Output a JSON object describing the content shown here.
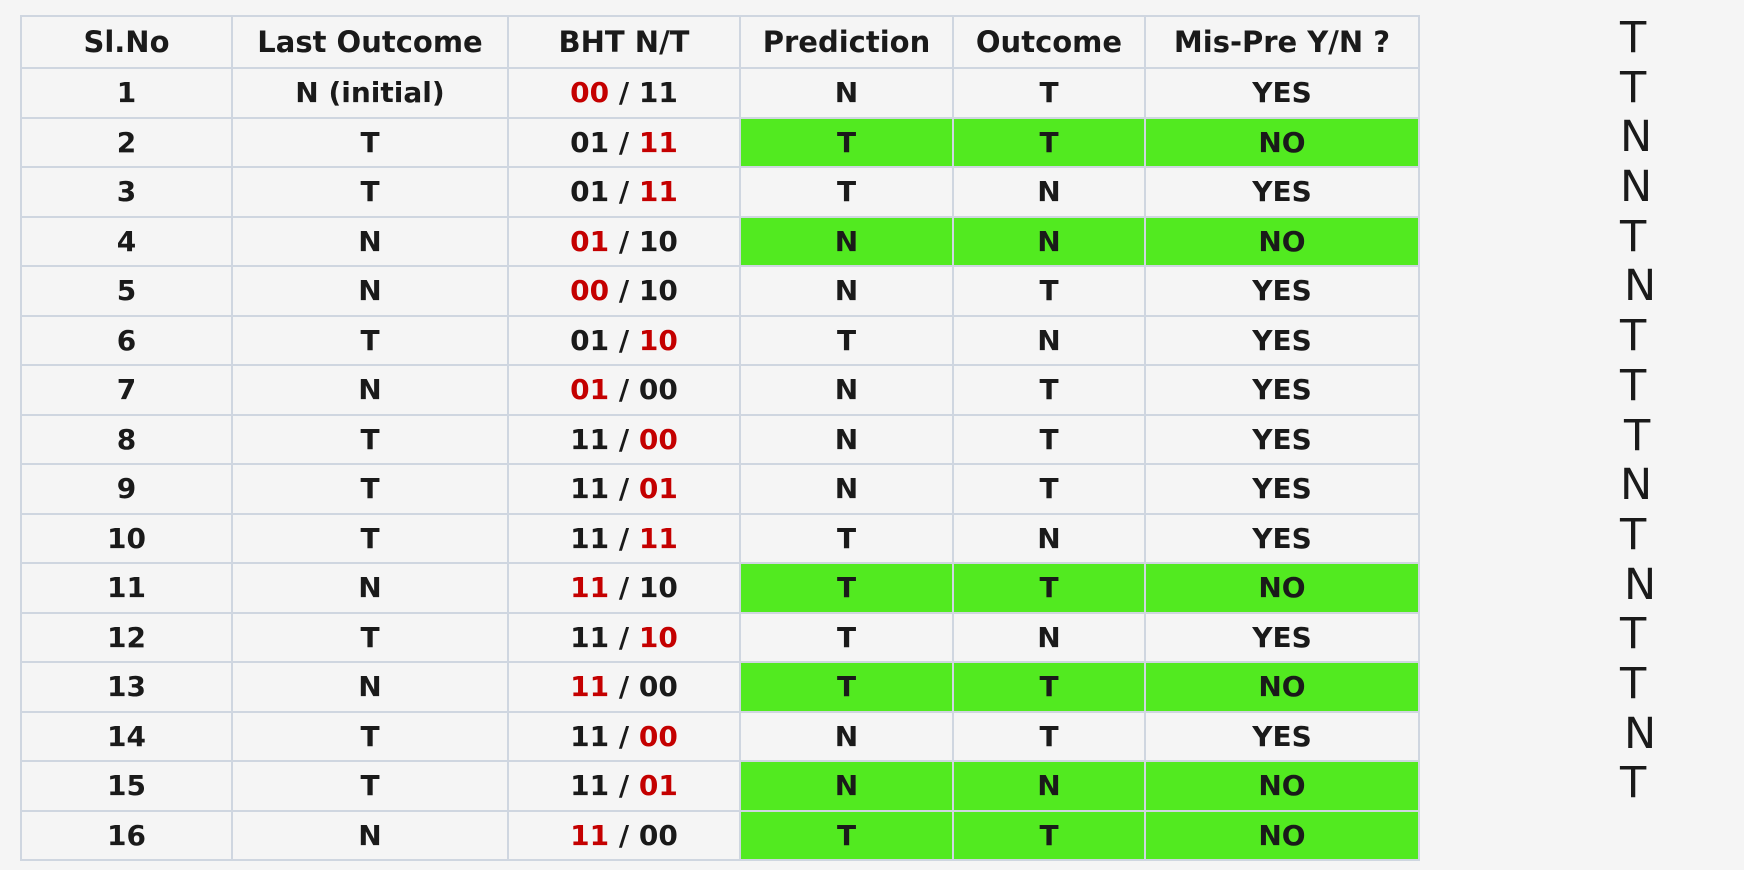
{
  "table": {
    "headers": [
      "Sl.No",
      "Last Outcome",
      "BHT N/T",
      "Prediction",
      "Outcome",
      "Mis-Pre Y/N ?"
    ],
    "rows": [
      {
        "slno": "1",
        "last": "N (initial)",
        "bht_n": "00",
        "bht_t": "11",
        "red": "n",
        "pred": "N",
        "outcome": "T",
        "mis": "YES",
        "highlight": false
      },
      {
        "slno": "2",
        "last": "T",
        "bht_n": "01",
        "bht_t": "11",
        "red": "t",
        "pred": "T",
        "outcome": "T",
        "mis": "NO",
        "highlight": true
      },
      {
        "slno": "3",
        "last": "T",
        "bht_n": "01",
        "bht_t": "11",
        "red": "t",
        "pred": "T",
        "outcome": "N",
        "mis": "YES",
        "highlight": false
      },
      {
        "slno": "4",
        "last": "N",
        "bht_n": "01",
        "bht_t": "10",
        "red": "n",
        "pred": "N",
        "outcome": "N",
        "mis": "NO",
        "highlight": true
      },
      {
        "slno": "5",
        "last": "N",
        "bht_n": "00",
        "bht_t": "10",
        "red": "n",
        "pred": "N",
        "outcome": "T",
        "mis": "YES",
        "highlight": false
      },
      {
        "slno": "6",
        "last": "T",
        "bht_n": "01",
        "bht_t": "10",
        "red": "t",
        "pred": "T",
        "outcome": "N",
        "mis": "YES",
        "highlight": false
      },
      {
        "slno": "7",
        "last": "N",
        "bht_n": "01",
        "bht_t": "00",
        "red": "n",
        "pred": "N",
        "outcome": "T",
        "mis": "YES",
        "highlight": false
      },
      {
        "slno": "8",
        "last": "T",
        "bht_n": "11",
        "bht_t": "00",
        "red": "t",
        "pred": "N",
        "outcome": "T",
        "mis": "YES",
        "highlight": false
      },
      {
        "slno": "9",
        "last": "T",
        "bht_n": "11",
        "bht_t": "01",
        "red": "t",
        "pred": "N",
        "outcome": "T",
        "mis": "YES",
        "highlight": false
      },
      {
        "slno": "10",
        "last": "T",
        "bht_n": "11",
        "bht_t": "11",
        "red": "t",
        "pred": "T",
        "outcome": "N",
        "mis": "YES",
        "highlight": false
      },
      {
        "slno": "11",
        "last": "N",
        "bht_n": "11",
        "bht_t": "10",
        "red": "n",
        "pred": "T",
        "outcome": "T",
        "mis": "NO",
        "highlight": true
      },
      {
        "slno": "12",
        "last": "T",
        "bht_n": "11",
        "bht_t": "10",
        "red": "t",
        "pred": "T",
        "outcome": "N",
        "mis": "YES",
        "highlight": false
      },
      {
        "slno": "13",
        "last": "N",
        "bht_n": "11",
        "bht_t": "00",
        "red": "n",
        "pred": "T",
        "outcome": "T",
        "mis": "NO",
        "highlight": true
      },
      {
        "slno": "14",
        "last": "T",
        "bht_n": "11",
        "bht_t": "00",
        "red": "t",
        "pred": "N",
        "outcome": "T",
        "mis": "YES",
        "highlight": false
      },
      {
        "slno": "15",
        "last": "T",
        "bht_n": "11",
        "bht_t": "01",
        "red": "t",
        "pred": "N",
        "outcome": "N",
        "mis": "NO",
        "highlight": true
      },
      {
        "slno": "16",
        "last": "N",
        "bht_n": "11",
        "bht_t": "00",
        "red": "n",
        "pred": "T",
        "outcome": "T",
        "mis": "NO",
        "highlight": true
      }
    ]
  },
  "sequence": [
    "T",
    "T",
    "N",
    "N",
    "T",
    "N",
    "T",
    "T",
    "T",
    "N",
    "T",
    "N",
    "T",
    "T",
    "N",
    "T"
  ],
  "colors": {
    "highlight": "#52ea20",
    "red_bits": "#c40000",
    "text": "#1a1a1a",
    "border": "#cfd6e0",
    "background": "#f5f5f5"
  }
}
